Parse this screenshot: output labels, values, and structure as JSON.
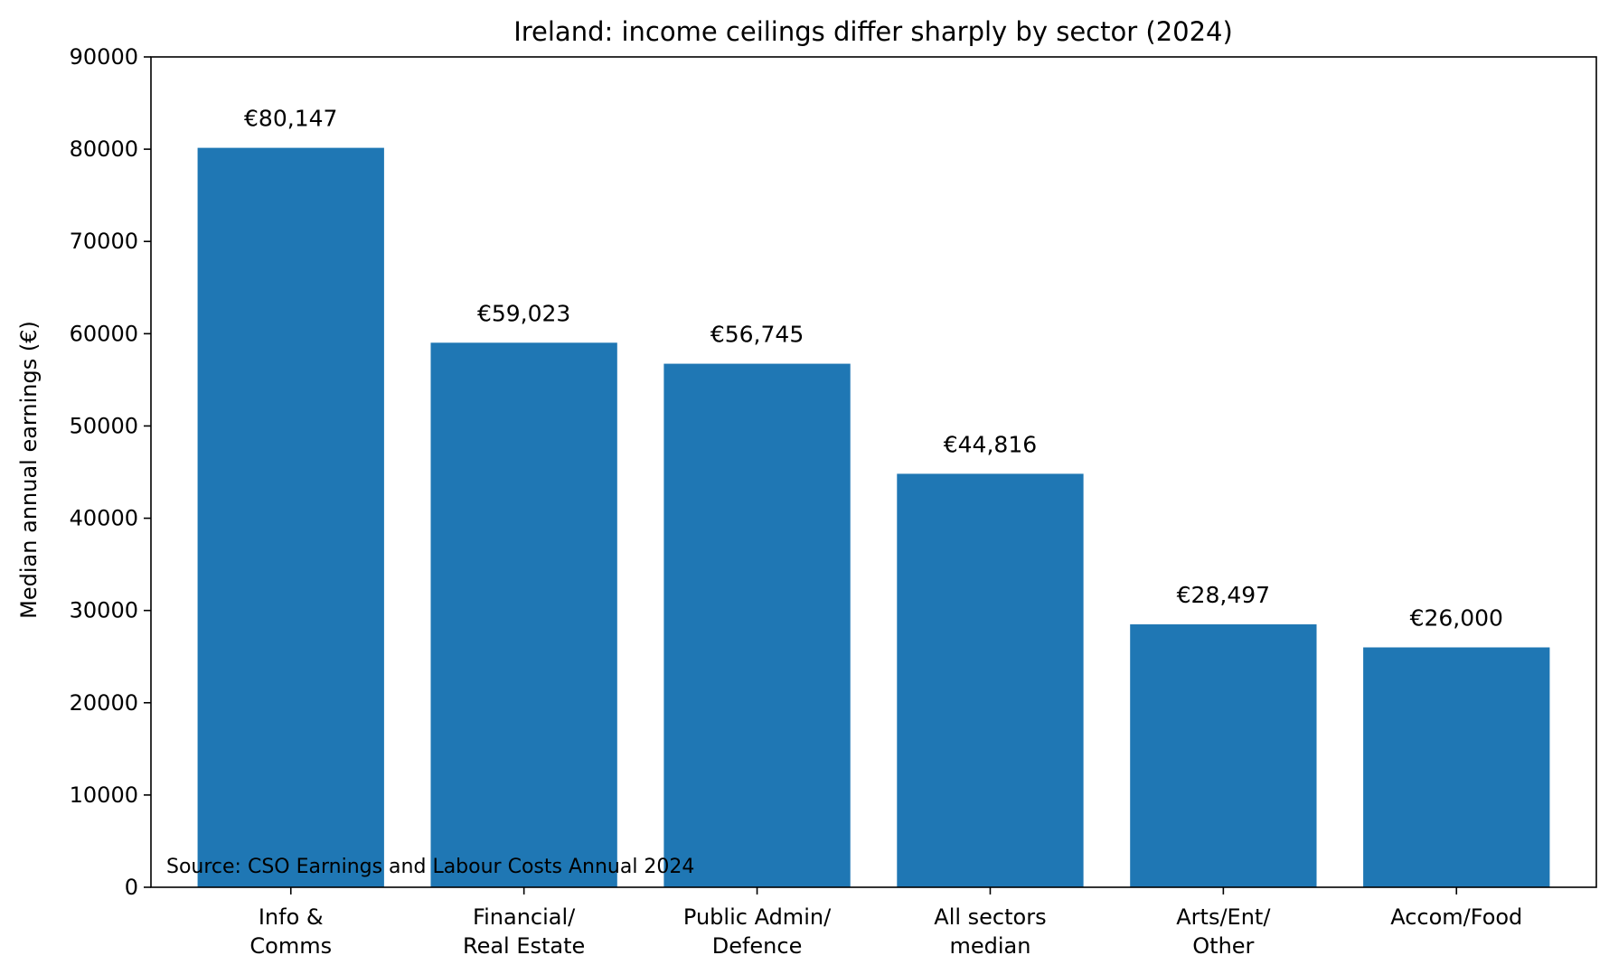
{
  "chart_data": {
    "type": "bar",
    "title": "Ireland: income ceilings differ sharply by sector (2024)",
    "xlabel": "",
    "ylabel": "Median annual earnings (€)",
    "ylim": [
      0,
      90000
    ],
    "yticks": [
      "0",
      "10000",
      "20000",
      "30000",
      "40000",
      "50000",
      "60000",
      "70000",
      "80000",
      "90000"
    ],
    "categories": [
      [
        "Info &",
        "Comms"
      ],
      [
        "Financial/",
        "Real Estate"
      ],
      [
        "Public Admin/",
        "Defence"
      ],
      [
        "All sectors",
        "median"
      ],
      [
        "Arts/Ent/",
        "Other"
      ],
      [
        "Accom/Food"
      ]
    ],
    "values": [
      80147,
      59023,
      56745,
      44816,
      28497,
      26000
    ],
    "data_labels": [
      "€80,147",
      "€59,023",
      "€56,745",
      "€44,816",
      "€28,497",
      "€26,000"
    ],
    "bar_color": "#1f77b4",
    "grid": false,
    "legend": "none",
    "annotation": "Source: CSO Earnings and Labour Costs Annual 2024"
  }
}
